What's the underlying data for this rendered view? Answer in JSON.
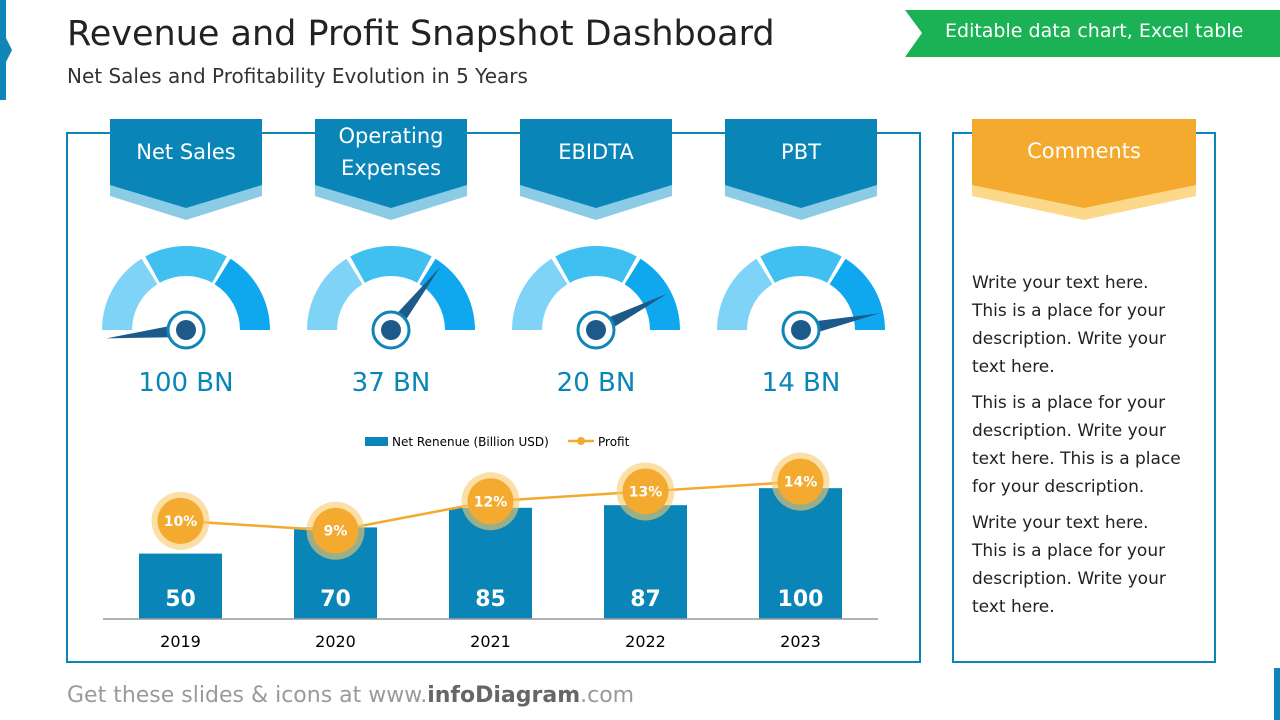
{
  "header": {
    "title": "Revenue and Profit Snapshot Dashboard",
    "subtitle": "Net Sales and Profitability Evolution in 5 Years",
    "badge": "Editable data chart, Excel table"
  },
  "kpis": [
    {
      "label": "Net Sales",
      "value": "100 BN"
    },
    {
      "label": "Operating Expenses",
      "value": "37 BN"
    },
    {
      "label": "EBIDTA",
      "value": "20 BN"
    },
    {
      "label": "PBT",
      "value": "14 BN"
    }
  ],
  "chart_data": {
    "type": "bar",
    "categories": [
      "2019",
      "2020",
      "2021",
      "2022",
      "2023"
    ],
    "series": [
      {
        "name": "Net Renenue (Billion USD)",
        "color": "#0a85b8",
        "values": [
          50,
          70,
          85,
          87,
          100
        ]
      },
      {
        "name": "Profit",
        "type": "line",
        "axis": "y2",
        "color": "#f3aa2e",
        "values": [
          10,
          9,
          12,
          13,
          14
        ],
        "value_labels": [
          "10%",
          "9%",
          "12%",
          "13%",
          "14%"
        ]
      }
    ],
    "ylim": [
      0,
      120
    ],
    "y2lim": [
      0,
      16
    ]
  },
  "comments": {
    "title": "Comments",
    "paragraphs": [
      "Write your text here. This is a place for your description. Write your text here.",
      "This is a place for your description. Write your text here. This is a place for your description.",
      "Write your text here. This is a place for your description. Write your text here."
    ]
  },
  "footer": {
    "prefix": "Get these slides & icons at www.",
    "brand": "infoDiagram",
    "suffix": ".com"
  }
}
